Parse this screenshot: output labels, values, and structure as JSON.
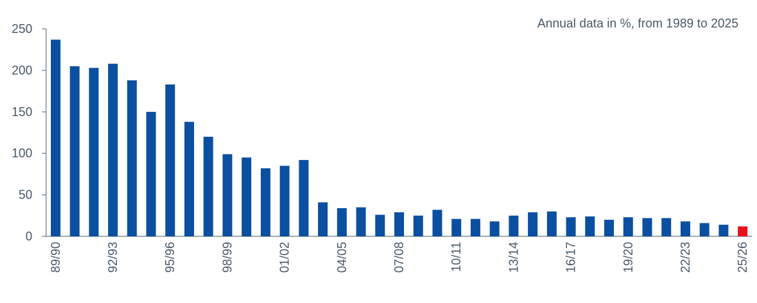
{
  "chart_data": {
    "type": "bar",
    "annotation": "Annual data in %, from 1989 to 2025",
    "categories": [
      "89/90",
      "90/91",
      "91/92",
      "92/93",
      "93/94",
      "94/95",
      "95/96",
      "96/97",
      "97/98",
      "98/99",
      "99/00",
      "00/01",
      "01/02",
      "02/03",
      "03/04",
      "04/05",
      "05/06",
      "06/07",
      "07/08",
      "08/09",
      "09/10",
      "10/11",
      "11/12",
      "12/13",
      "13/14",
      "14/15",
      "15/16",
      "16/17",
      "17/18",
      "18/19",
      "19/20",
      "20/21",
      "21/22",
      "22/23",
      "23/24",
      "24/25",
      "25/26"
    ],
    "values": [
      237,
      205,
      203,
      208,
      188,
      150,
      183,
      138,
      120,
      99,
      95,
      82,
      85,
      92,
      41,
      34,
      35,
      26,
      29,
      25,
      32,
      21,
      21,
      18,
      25,
      29,
      30,
      23,
      24,
      20,
      23,
      22,
      22,
      18,
      16,
      14,
      12
    ],
    "labeled_categories": [
      "89/90",
      "92/93",
      "95/96",
      "98/99",
      "01/02",
      "04/05",
      "07/08",
      "10/11",
      "13/14",
      "16/17",
      "19/20",
      "22/23",
      "25/26"
    ],
    "y_ticks": [
      0,
      50,
      100,
      150,
      200,
      250
    ],
    "ylim": [
      0,
      250
    ],
    "grid": false,
    "colors": {
      "bar": "#0b4fa0",
      "highlight": "#e8111b",
      "axis": "#8a96a3",
      "text": "#4a5a68"
    },
    "highlight_category": "25/26"
  }
}
